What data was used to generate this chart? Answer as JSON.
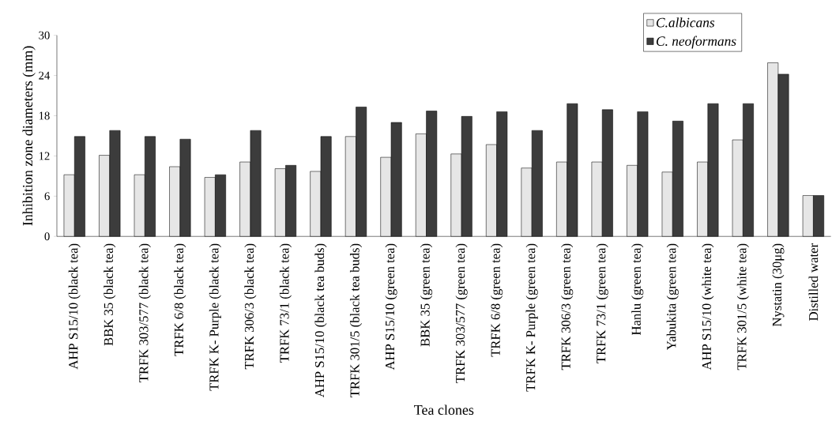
{
  "chart_data": {
    "type": "bar",
    "xlabel": "Tea clones",
    "ylabel": "Inhibition zone diameters (mm)",
    "categories": [
      "AHP S15/10 (black tea)",
      "BBK 35 (black tea)",
      "TRFK 303/577 (black tea)",
      "TRFK 6/8 (black tea)",
      "TRFK K- Purple (black tea)",
      "TRFK 306/3 (black tea)",
      "TRFK 73/1 (black tea)",
      "AHP S15/10 (black tea buds)",
      "TRFK 301/5 (black tea buds)",
      "AHP S15/10 (green tea)",
      "BBK 35 (green tea)",
      "TRFK 303/577 (green tea)",
      "TRFK 6/8 (green tea)",
      "TRFK K- Purple (green tea)",
      "TRFK 306/3 (green tea)",
      "TRFK 73/1 (green tea)",
      "Hanlu (green tea)",
      "Yabukita (green tea)",
      "AHP S15/10 (white tea)",
      "TRFK 301/5 (white tea)",
      "Nystatin (30μg)",
      "Distilled water"
    ],
    "series": [
      {
        "name": "C.albicans",
        "color": "#e6e6e6",
        "values": [
          9.2,
          12.1,
          9.2,
          10.4,
          8.8,
          11.1,
          10.1,
          9.7,
          14.9,
          11.8,
          15.3,
          12.3,
          13.7,
          10.2,
          11.1,
          11.1,
          10.6,
          9.6,
          11.1,
          14.4,
          25.9,
          6.1
        ]
      },
      {
        "name": "C. neoformans",
        "color": "#3c3c3c",
        "values": [
          14.9,
          15.8,
          14.9,
          14.5,
          9.2,
          15.8,
          10.6,
          14.9,
          19.3,
          17.0,
          18.7,
          17.9,
          18.6,
          15.8,
          19.8,
          18.9,
          18.6,
          17.2,
          19.8,
          19.8,
          24.2,
          6.1
        ]
      }
    ],
    "ylim": [
      0,
      30
    ],
    "yticks": [
      0,
      6,
      12,
      18,
      24,
      30
    ],
    "legend": "top right"
  }
}
